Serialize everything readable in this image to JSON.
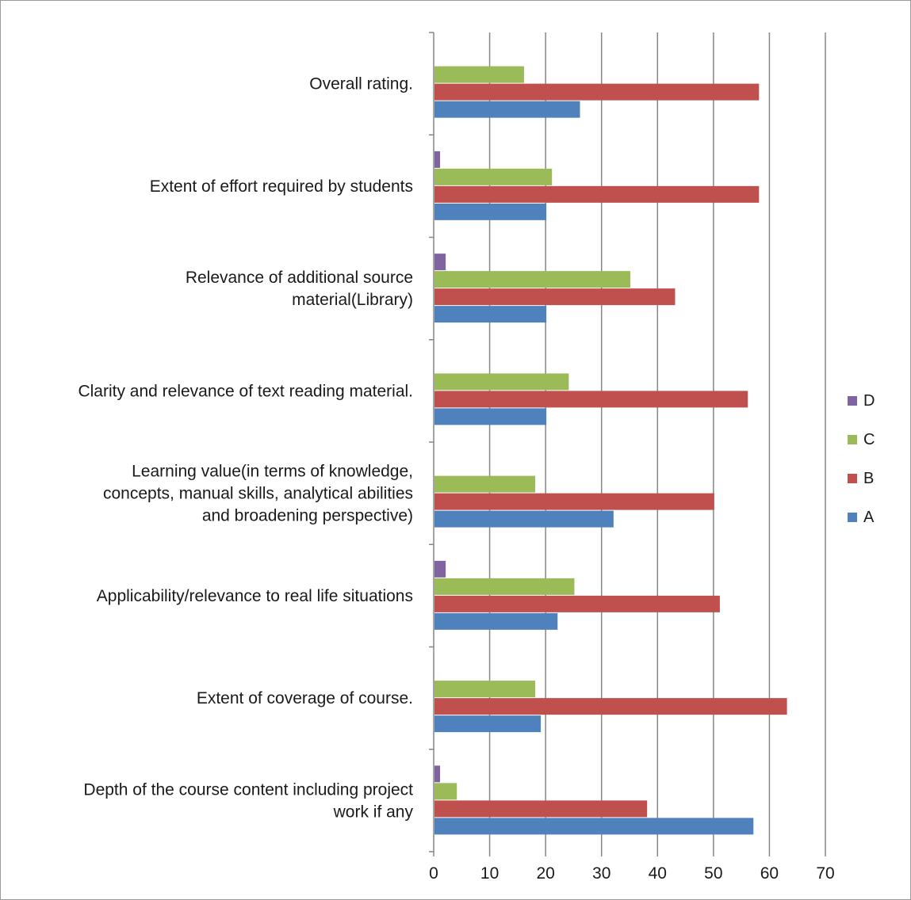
{
  "chart_data": {
    "type": "bar",
    "orientation": "horizontal",
    "categories": [
      "Depth of the course content including project work if any",
      "Extent of coverage of course.",
      "Applicability/relevance to real life situations",
      "Learning value(in terms of knowledge, concepts, manual skills, analytical abilities and broadening perspective)",
      "Clarity and relevance of text reading material.",
      "Relevance of additional source material(Library)",
      "Extent of effort required by students",
      "Overall rating."
    ],
    "category_label_lines": [
      [
        "Depth of the course content including project",
        "work if any"
      ],
      [
        "Extent of coverage of course."
      ],
      [
        "Applicability/relevance to real life situations"
      ],
      [
        "Learning value(in terms of knowledge,",
        "concepts, manual skills, analytical abilities",
        "and broadening perspective)"
      ],
      [
        "Clarity and relevance of text reading material."
      ],
      [
        "Relevance of additional source",
        "material(Library)"
      ],
      [
        "Extent of effort required by students"
      ],
      [
        "Overall rating."
      ]
    ],
    "series": [
      {
        "name": "A",
        "color": "#4f81bd",
        "values": [
          57,
          19,
          22,
          32,
          20,
          20,
          20,
          26
        ]
      },
      {
        "name": "B",
        "color": "#c0504d",
        "values": [
          38,
          63,
          51,
          50,
          56,
          43,
          58,
          58
        ]
      },
      {
        "name": "C",
        "color": "#9bbb59",
        "values": [
          4,
          18,
          25,
          18,
          24,
          35,
          21,
          16
        ]
      },
      {
        "name": "D",
        "color": "#8064a2",
        "values": [
          1,
          0,
          2,
          0,
          0,
          2,
          1,
          0
        ]
      }
    ],
    "xlim": [
      0,
      70
    ],
    "xticks": [
      0,
      10,
      20,
      30,
      40,
      50,
      60,
      70
    ],
    "grid": "vertical",
    "legend_position": "right",
    "legend_order": [
      "D",
      "C",
      "B",
      "A"
    ],
    "title": "",
    "xlabel": "",
    "ylabel": ""
  }
}
